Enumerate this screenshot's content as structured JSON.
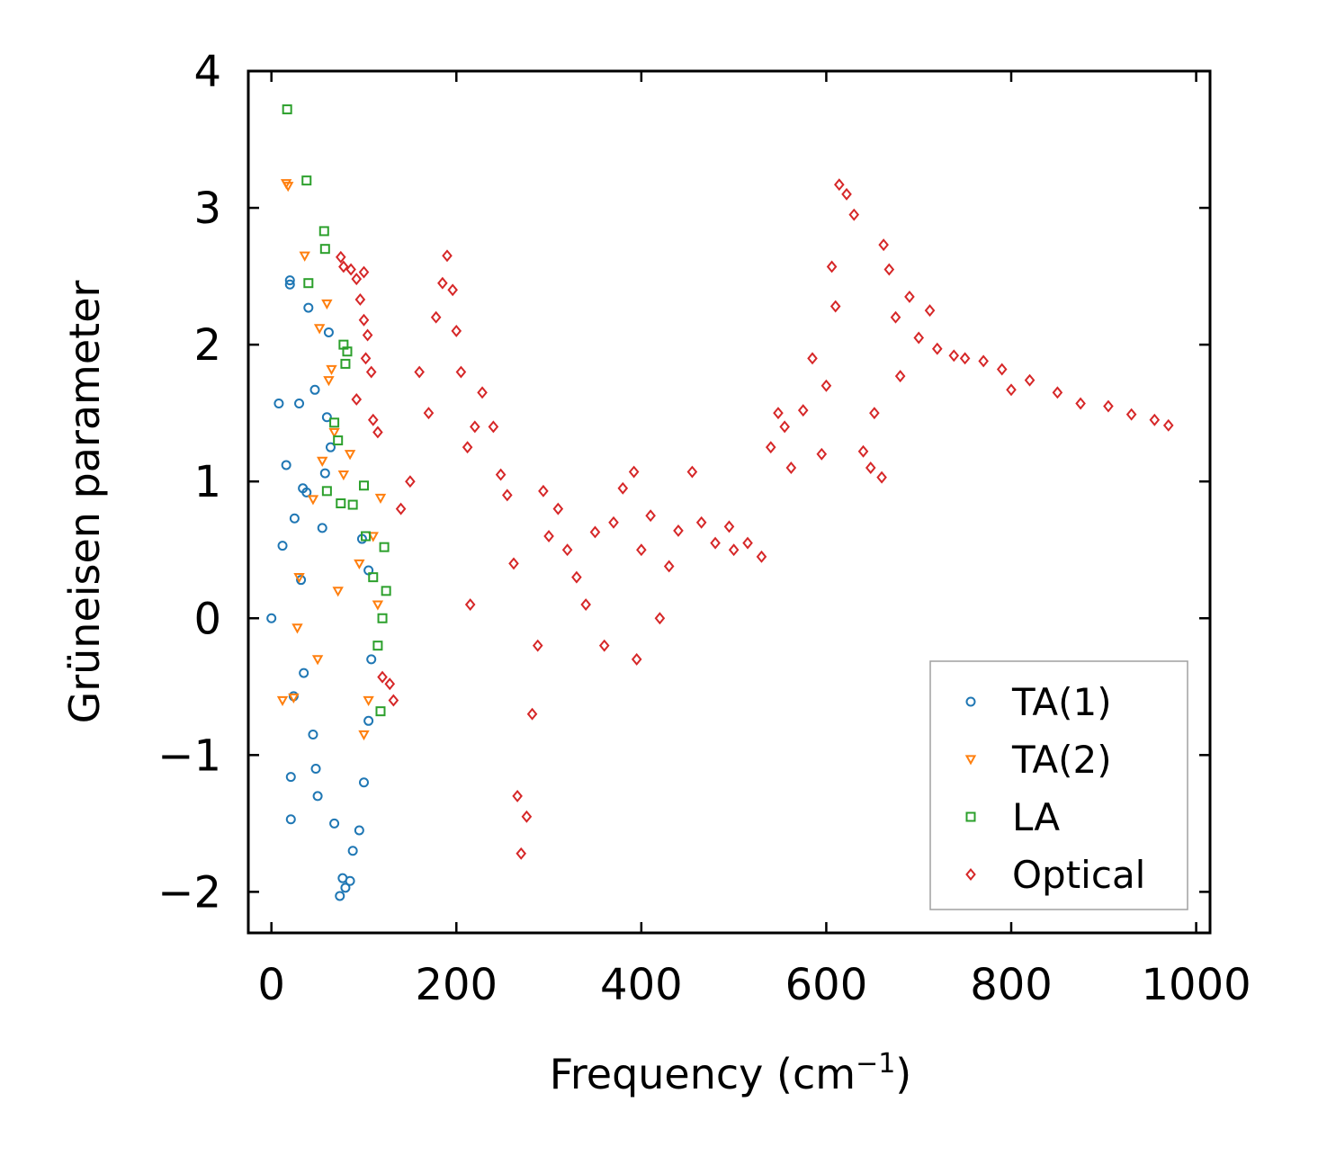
{
  "chart_data": {
    "type": "scatter",
    "title": "",
    "xlabel": "Frequency (cm",
    "xlabel_superscript": "−1",
    "xlabel_close": ")",
    "ylabel": "Grüneisen parameter",
    "xlim": [
      -25,
      1015
    ],
    "ylim": [
      -2.3,
      4.0
    ],
    "xticks": [
      0,
      200,
      400,
      600,
      800,
      1000
    ],
    "xtick_labels": [
      "0",
      "200",
      "400",
      "600",
      "800",
      "1000"
    ],
    "yticks": [
      -2,
      -1,
      0,
      1,
      2,
      3,
      4
    ],
    "ytick_labels": [
      "−2",
      "−1",
      "0",
      "1",
      "2",
      "3",
      "4"
    ],
    "grid": false,
    "legend_position": "bottom-right",
    "series": [
      {
        "name": "TA(1)",
        "color": "#1f77b4",
        "marker": "circle",
        "points": [
          [
            0,
            0.0
          ],
          [
            8,
            1.57
          ],
          [
            12,
            0.53
          ],
          [
            16,
            1.12
          ],
          [
            20,
            2.47
          ],
          [
            20,
            2.44
          ],
          [
            21,
            -1.47
          ],
          [
            21,
            -1.16
          ],
          [
            24,
            -0.57
          ],
          [
            25,
            0.73
          ],
          [
            30,
            1.57
          ],
          [
            32,
            0.28
          ],
          [
            34,
            0.95
          ],
          [
            35,
            -0.4
          ],
          [
            38,
            0.92
          ],
          [
            40,
            2.27
          ],
          [
            45,
            -0.85
          ],
          [
            47,
            1.67
          ],
          [
            48,
            -1.1
          ],
          [
            50,
            -1.3
          ],
          [
            55,
            0.66
          ],
          [
            58,
            1.06
          ],
          [
            60,
            1.47
          ],
          [
            62,
            2.09
          ],
          [
            64,
            1.25
          ],
          [
            68,
            -1.5
          ],
          [
            74,
            -2.03
          ],
          [
            77,
            -1.9
          ],
          [
            80,
            -1.97
          ],
          [
            85,
            -1.92
          ],
          [
            88,
            -1.7
          ],
          [
            95,
            -1.55
          ],
          [
            100,
            -1.2
          ],
          [
            105,
            -0.75
          ],
          [
            108,
            -0.3
          ],
          [
            105,
            0.35
          ],
          [
            98,
            0.58
          ]
        ]
      },
      {
        "name": "TA(2)",
        "color": "#ff7f0e",
        "marker": "triangle-down",
        "points": [
          [
            16,
            3.18
          ],
          [
            18,
            3.16
          ],
          [
            12,
            -0.6
          ],
          [
            24,
            -0.58
          ],
          [
            28,
            -0.07
          ],
          [
            30,
            0.3
          ],
          [
            36,
            2.65
          ],
          [
            45,
            0.87
          ],
          [
            50,
            -0.3
          ],
          [
            52,
            2.12
          ],
          [
            55,
            1.15
          ],
          [
            60,
            2.3
          ],
          [
            62,
            1.74
          ],
          [
            65,
            1.82
          ],
          [
            68,
            1.36
          ],
          [
            72,
            0.2
          ],
          [
            78,
            1.05
          ],
          [
            85,
            1.2
          ],
          [
            95,
            0.4
          ],
          [
            100,
            -0.85
          ],
          [
            105,
            -0.6
          ],
          [
            110,
            0.6
          ],
          [
            115,
            0.1
          ],
          [
            118,
            0.88
          ]
        ]
      },
      {
        "name": "LA",
        "color": "#2ca02c",
        "marker": "square",
        "points": [
          [
            17,
            3.72
          ],
          [
            38,
            3.2
          ],
          [
            40,
            2.45
          ],
          [
            57,
            2.83
          ],
          [
            58,
            2.7
          ],
          [
            78,
            2.0
          ],
          [
            80,
            1.86
          ],
          [
            82,
            1.95
          ],
          [
            68,
            1.43
          ],
          [
            72,
            1.3
          ],
          [
            60,
            0.93
          ],
          [
            75,
            0.84
          ],
          [
            88,
            0.83
          ],
          [
            100,
            0.97
          ],
          [
            102,
            0.6
          ],
          [
            110,
            0.3
          ],
          [
            115,
            -0.2
          ],
          [
            118,
            -0.68
          ],
          [
            120,
            0.0
          ],
          [
            122,
            0.52
          ],
          [
            124,
            0.2
          ]
        ]
      },
      {
        "name": "Optical",
        "color": "#d62728",
        "marker": "diamond",
        "points": [
          [
            75,
            2.64
          ],
          [
            78,
            2.57
          ],
          [
            86,
            2.55
          ],
          [
            92,
            2.48
          ],
          [
            100,
            2.53
          ],
          [
            96,
            2.33
          ],
          [
            100,
            2.18
          ],
          [
            102,
            1.9
          ],
          [
            108,
            1.8
          ],
          [
            92,
            1.6
          ],
          [
            104,
            2.07
          ],
          [
            110,
            1.45
          ],
          [
            115,
            1.36
          ],
          [
            120,
            -0.43
          ],
          [
            128,
            -0.48
          ],
          [
            132,
            -0.6
          ],
          [
            140,
            0.8
          ],
          [
            150,
            1.0
          ],
          [
            160,
            1.8
          ],
          [
            170,
            1.5
          ],
          [
            178,
            2.2
          ],
          [
            185,
            2.45
          ],
          [
            190,
            2.65
          ],
          [
            196,
            2.4
          ],
          [
            200,
            2.1
          ],
          [
            205,
            1.8
          ],
          [
            212,
            1.25
          ],
          [
            215,
            0.1
          ],
          [
            220,
            1.4
          ],
          [
            228,
            1.65
          ],
          [
            240,
            1.4
          ],
          [
            248,
            1.05
          ],
          [
            255,
            0.9
          ],
          [
            262,
            0.4
          ],
          [
            266,
            -1.3
          ],
          [
            270,
            -1.72
          ],
          [
            276,
            -1.45
          ],
          [
            282,
            -0.7
          ],
          [
            288,
            -0.2
          ],
          [
            294,
            0.93
          ],
          [
            300,
            0.6
          ],
          [
            310,
            0.8
          ],
          [
            320,
            0.5
          ],
          [
            330,
            0.3
          ],
          [
            340,
            0.1
          ],
          [
            350,
            0.63
          ],
          [
            360,
            -0.2
          ],
          [
            370,
            0.7
          ],
          [
            380,
            0.95
          ],
          [
            392,
            1.07
          ],
          [
            395,
            -0.3
          ],
          [
            400,
            0.5
          ],
          [
            410,
            0.75
          ],
          [
            420,
            0.0
          ],
          [
            430,
            0.38
          ],
          [
            440,
            0.64
          ],
          [
            455,
            1.07
          ],
          [
            465,
            0.7
          ],
          [
            480,
            0.55
          ],
          [
            495,
            0.67
          ],
          [
            500,
            0.5
          ],
          [
            515,
            0.55
          ],
          [
            530,
            0.45
          ],
          [
            540,
            1.25
          ],
          [
            548,
            1.5
          ],
          [
            555,
            1.4
          ],
          [
            562,
            1.1
          ],
          [
            575,
            1.52
          ],
          [
            585,
            1.9
          ],
          [
            595,
            1.2
          ],
          [
            600,
            1.7
          ],
          [
            606,
            2.57
          ],
          [
            610,
            2.28
          ],
          [
            614,
            3.17
          ],
          [
            622,
            3.1
          ],
          [
            630,
            2.95
          ],
          [
            640,
            1.22
          ],
          [
            648,
            1.1
          ],
          [
            652,
            1.5
          ],
          [
            660,
            1.03
          ],
          [
            662,
            2.73
          ],
          [
            668,
            2.55
          ],
          [
            675,
            2.2
          ],
          [
            680,
            1.77
          ],
          [
            690,
            2.35
          ],
          [
            700,
            2.05
          ],
          [
            712,
            2.25
          ],
          [
            720,
            1.97
          ],
          [
            738,
            1.92
          ],
          [
            750,
            1.9
          ],
          [
            770,
            1.88
          ],
          [
            790,
            1.82
          ],
          [
            800,
            1.67
          ],
          [
            820,
            1.74
          ],
          [
            850,
            1.65
          ],
          [
            875,
            1.57
          ],
          [
            905,
            1.55
          ],
          [
            930,
            1.49
          ],
          [
            955,
            1.45
          ],
          [
            970,
            1.41
          ]
        ]
      }
    ]
  }
}
